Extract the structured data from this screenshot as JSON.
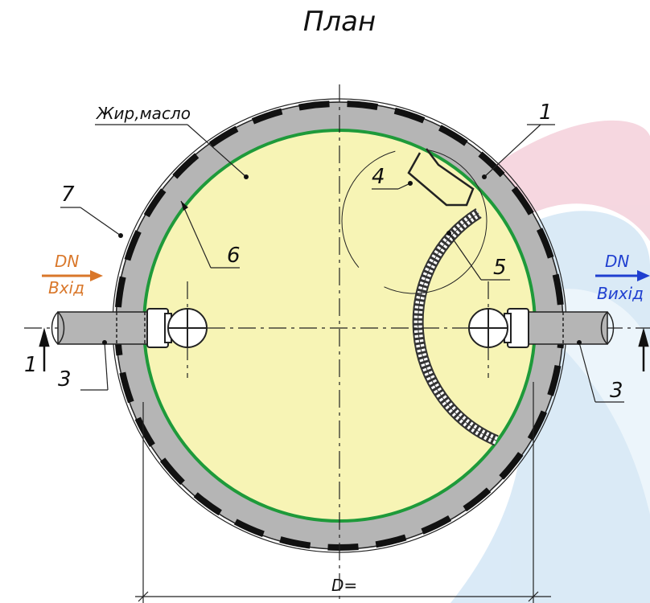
{
  "title": "План",
  "labels": {
    "fat_oil": "Жир,масло",
    "n1": "1",
    "n3_left": "3",
    "n3_right": "3",
    "n4": "4",
    "n5": "5",
    "n6": "6",
    "n7": "7",
    "section_left": "1",
    "inlet_dn": "DN",
    "inlet_text": "Вхід",
    "outlet_dn": "DN",
    "outlet_text": "Вихід",
    "diameter": "D="
  },
  "colors": {
    "wall": "#b5b5b5",
    "interior": "#f7f4b5",
    "inner_ring": "#1e9a3a",
    "inlet": "#d9772a",
    "outlet": "#1f3fd0",
    "watermark_red": "#e8b3c0",
    "watermark_blue": "#c5ddf2"
  }
}
